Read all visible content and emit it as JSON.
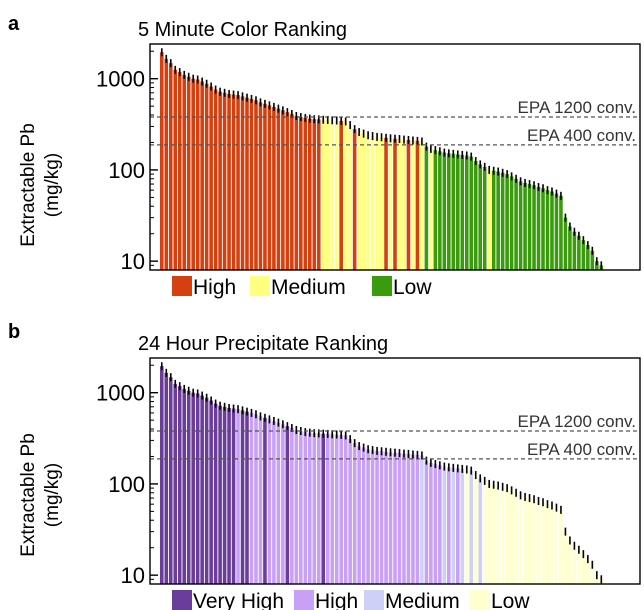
{
  "figure": {
    "shared_ylabel_line1": "Extractable Pb",
    "shared_ylabel_line2": "(mg/kg)"
  },
  "chart_data": [
    {
      "panel": "a",
      "type": "bar",
      "title": "5 Minute Color Ranking",
      "ylabel": "Extractable Pb (mg/kg)",
      "xlabel": "",
      "yscale": "log",
      "ylim": [
        8,
        2400
      ],
      "ytick_values": [
        10,
        100,
        1000
      ],
      "ytick_labels": [
        "10",
        "100",
        "1000"
      ],
      "grid": false,
      "legend_position": "bottom",
      "error_bars": true,
      "legend": [
        {
          "label": "High",
          "color": "#d4400f"
        },
        {
          "label": "Medium",
          "color": "#ffff80"
        },
        {
          "label": "Low",
          "color": "#3b9b0f"
        }
      ],
      "reference_lines": [
        {
          "label": "EPA 1200 conv.",
          "value": 380
        },
        {
          "label": "EPA 400 conv.",
          "value": 188
        }
      ],
      "values": [
        1950,
        1650,
        1480,
        1250,
        1180,
        1100,
        1050,
        1000,
        980,
        930,
        880,
        820,
        760,
        720,
        700,
        680,
        670,
        660,
        640,
        620,
        600,
        580,
        550,
        530,
        510,
        490,
        470,
        450,
        430,
        410,
        390,
        380,
        370,
        365,
        360,
        358,
        355,
        353,
        350,
        348,
        345,
        340,
        310,
        280,
        260,
        250,
        240,
        235,
        230,
        228,
        225,
        222,
        220,
        218,
        215,
        213,
        210,
        208,
        205,
        180,
        170,
        165,
        160,
        155,
        152,
        150,
        148,
        146,
        144,
        140,
        125,
        115,
        108,
        100,
        98,
        96,
        93,
        90,
        85,
        80,
        75,
        72,
        70,
        68,
        65,
        63,
        60,
        58,
        55,
        52,
        30,
        24,
        21,
        19,
        17,
        15,
        13,
        10,
        9
      ],
      "categories": [
        "High",
        "High",
        "High",
        "High",
        "High",
        "High",
        "High",
        "High",
        "High",
        "High",
        "High",
        "High",
        "High",
        "High",
        "High",
        "High",
        "High",
        "High",
        "High",
        "High",
        "High",
        "High",
        "High",
        "High",
        "High",
        "High",
        "High",
        "High",
        "High",
        "High",
        "High",
        "High",
        "High",
        "High",
        "High",
        "High",
        "Medium",
        "Medium",
        "Medium",
        "Medium",
        "High",
        "Medium",
        "Medium",
        "High",
        "Medium",
        "Medium",
        "Medium",
        "Medium",
        "Medium",
        "Medium",
        "High",
        "Medium",
        "High",
        "Medium",
        "Medium",
        "High",
        "Medium",
        "High",
        "Medium",
        "Low",
        "Medium",
        "Low",
        "Low",
        "Low",
        "Low",
        "Low",
        "Low",
        "Low",
        "Low",
        "Low",
        "Low",
        "Low",
        "Low",
        "Medium",
        "Low",
        "Low",
        "Low",
        "Low",
        "Low",
        "Low",
        "Low",
        "Low",
        "Low",
        "Low",
        "Low",
        "Low",
        "Low",
        "Low",
        "Low",
        "Low",
        "Low",
        "Low",
        "Low",
        "Low",
        "Low",
        "Low",
        "Low",
        "Low",
        "Low"
      ]
    },
    {
      "panel": "b",
      "type": "bar",
      "title": "24 Hour Precipitate Ranking",
      "ylabel": "Extractable Pb (mg/kg)",
      "xlabel": "",
      "yscale": "log",
      "ylim": [
        8,
        2400
      ],
      "ytick_values": [
        10,
        100,
        1000
      ],
      "ytick_labels": [
        "10",
        "100",
        "1000"
      ],
      "grid": false,
      "legend_position": "bottom",
      "error_bars": true,
      "legend": [
        {
          "label": "Very High",
          "color": "#6a3d9a"
        },
        {
          "label": "High",
          "color": "#c8a0f5"
        },
        {
          "label": "Medium",
          "color": "#cdd0f8"
        },
        {
          "label": "Low",
          "color": "#ffffd0"
        }
      ],
      "reference_lines": [
        {
          "label": "EPA 1200 conv.",
          "value": 380
        },
        {
          "label": "EPA 400 conv.",
          "value": 188
        }
      ],
      "values": [
        1950,
        1650,
        1480,
        1250,
        1180,
        1100,
        1050,
        1000,
        980,
        930,
        880,
        820,
        760,
        720,
        700,
        680,
        670,
        660,
        640,
        620,
        600,
        580,
        550,
        530,
        510,
        490,
        470,
        450,
        430,
        410,
        390,
        380,
        370,
        365,
        360,
        358,
        355,
        353,
        350,
        348,
        345,
        340,
        310,
        280,
        260,
        250,
        240,
        235,
        230,
        228,
        225,
        222,
        220,
        218,
        215,
        213,
        210,
        208,
        205,
        180,
        170,
        165,
        160,
        155,
        152,
        150,
        148,
        146,
        144,
        140,
        125,
        115,
        108,
        100,
        98,
        96,
        93,
        90,
        85,
        80,
        75,
        72,
        70,
        68,
        65,
        63,
        60,
        58,
        55,
        52,
        30,
        24,
        21,
        19,
        17,
        15,
        13,
        10,
        9
      ],
      "categories": [
        "Very High",
        "Very High",
        "Very High",
        "Very High",
        "Very High",
        "Very High",
        "Very High",
        "Very High",
        "Very High",
        "Very High",
        "Very High",
        "Very High",
        "Very High",
        "Very High",
        "Very High",
        "Very High",
        "Very High",
        "High",
        "Very High",
        "Very High",
        "High",
        "High",
        "High",
        "Very High",
        "High",
        "High",
        "High",
        "High",
        "Very High",
        "High",
        "High",
        "High",
        "High",
        "High",
        "High",
        "High",
        "Very High",
        "High",
        "High",
        "High",
        "High",
        "High",
        "High",
        "High",
        "High",
        "High",
        "High",
        "High",
        "High",
        "High",
        "High",
        "High",
        "High",
        "High",
        "High",
        "High",
        "High",
        "High",
        "Medium",
        "High",
        "High",
        "High",
        "High",
        "Medium",
        "High",
        "Medium",
        "High",
        "Medium",
        "Low",
        "Medium",
        "Low",
        "Medium",
        "Low",
        "Low",
        "Low",
        "Low",
        "Low",
        "Low",
        "Low",
        "Low",
        "Low",
        "Low",
        "Low",
        "Low",
        "Low",
        "Low",
        "Low",
        "Low",
        "Low",
        "Low",
        "Low",
        "Low",
        "Low",
        "Low",
        "Low",
        "Low",
        "Low",
        "Low",
        "Low"
      ]
    }
  ]
}
